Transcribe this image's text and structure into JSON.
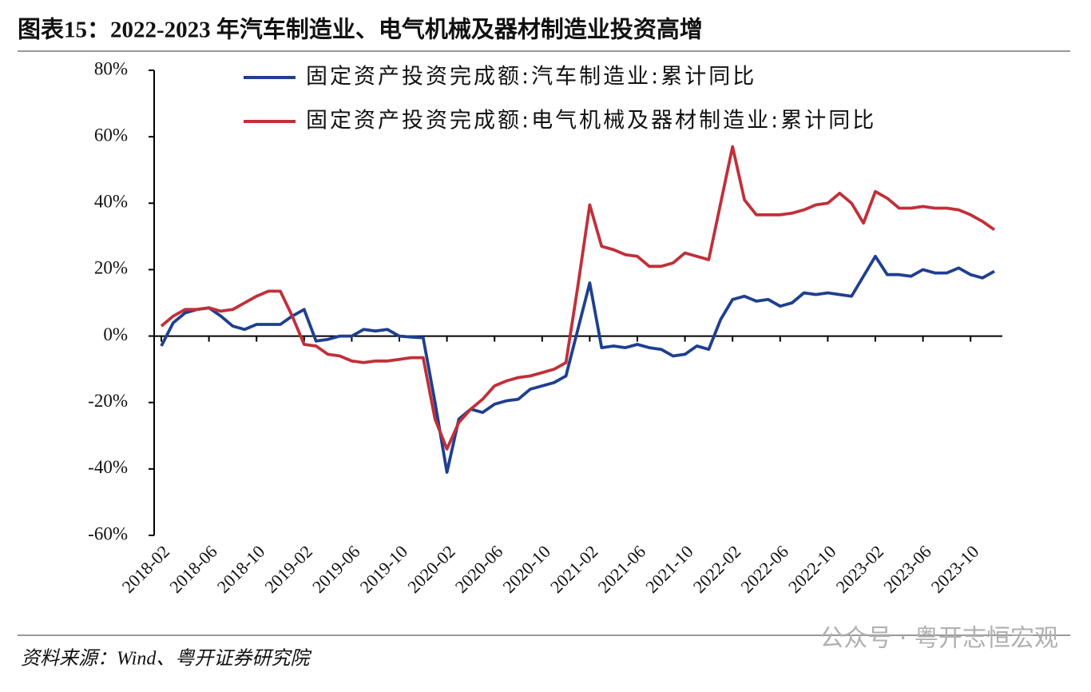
{
  "chart_data": {
    "type": "line",
    "title": "图表15：2022-2023 年汽车制造业、电气机械及器材制造业投资高增",
    "source": "资料来源：Wind、粤开证券研究院",
    "watermark": "公众号 · 粤开志恒宏观",
    "categories": [
      "2018-02",
      null,
      null,
      null,
      "2018-06",
      null,
      null,
      null,
      "2018-10",
      null,
      null,
      null,
      "2019-02",
      null,
      null,
      null,
      "2019-06",
      null,
      null,
      null,
      "2019-10",
      null,
      null,
      null,
      "2020-02",
      null,
      null,
      null,
      "2020-06",
      null,
      null,
      null,
      "2020-10",
      null,
      null,
      null,
      "2021-02",
      null,
      null,
      null,
      "2021-06",
      null,
      null,
      null,
      "2021-10",
      null,
      null,
      null,
      "2022-02",
      null,
      null,
      null,
      "2022-06",
      null,
      null,
      null,
      "2022-10",
      null,
      null,
      null,
      "2023-02",
      null,
      null,
      null,
      "2023-06",
      null,
      null,
      null,
      "2023-10",
      null,
      null
    ],
    "series": [
      {
        "name": "固定资产投资完成额:汽车制造业:累计同比",
        "color": "#1f3f8f",
        "values": [
          -3,
          4,
          7,
          8,
          8.5,
          6,
          3,
          2,
          3.5,
          3.5,
          3.5,
          6,
          8,
          -1.5,
          -1,
          0,
          0,
          2,
          1.5,
          2,
          0,
          -0.3,
          -0.5,
          -20,
          -41,
          -25,
          -22,
          -23,
          -20.5,
          -19.5,
          -19,
          -16,
          -15,
          -14,
          -12,
          2,
          16,
          -3.5,
          -3,
          -3.5,
          -2.5,
          -3.5,
          -4,
          -6,
          -5.5,
          -3,
          -4,
          5,
          11,
          12,
          10.5,
          11,
          9,
          10,
          13,
          12.5,
          13,
          12.5,
          12,
          18,
          24,
          18.5,
          18.5,
          18,
          20,
          19,
          19,
          20.5,
          18.5,
          17.5,
          19.5
        ]
      },
      {
        "name": "固定资产投资完成额:电气机械及器材制造业:累计同比",
        "color": "#c0303a",
        "values": [
          3,
          6,
          8,
          8,
          8.5,
          7.5,
          8,
          10,
          12,
          13.5,
          13.5,
          6,
          -2.5,
          -3,
          -5.5,
          -6,
          -7.5,
          -8,
          -7.5,
          -7.5,
          -7,
          -6.5,
          -6.5,
          -25,
          -34,
          -26,
          -22,
          -19,
          -15,
          -13.5,
          -12.5,
          -12,
          -11,
          -10,
          -8,
          15,
          39.5,
          27,
          26,
          24.5,
          24,
          21,
          21,
          22,
          25,
          24,
          23,
          40,
          57,
          41,
          36.5,
          36.5,
          36.5,
          37,
          38,
          39.5,
          40,
          43,
          40,
          34,
          43.5,
          41.5,
          38.5,
          38.5,
          39,
          38.5,
          38.5,
          38,
          36.5,
          34.5,
          32
        ]
      }
    ],
    "ylim": [
      -60,
      80
    ],
    "yticks": [
      {
        "value": -60,
        "label": "-60%"
      },
      {
        "value": -40,
        "label": "-40%"
      },
      {
        "value": -20,
        "label": "-20%"
      },
      {
        "value": 0,
        "label": "0%"
      },
      {
        "value": 20,
        "label": "20%"
      },
      {
        "value": 40,
        "label": "40%"
      },
      {
        "value": 60,
        "label": "60%"
      },
      {
        "value": 80,
        "label": "80%"
      }
    ],
    "legend": "top"
  }
}
